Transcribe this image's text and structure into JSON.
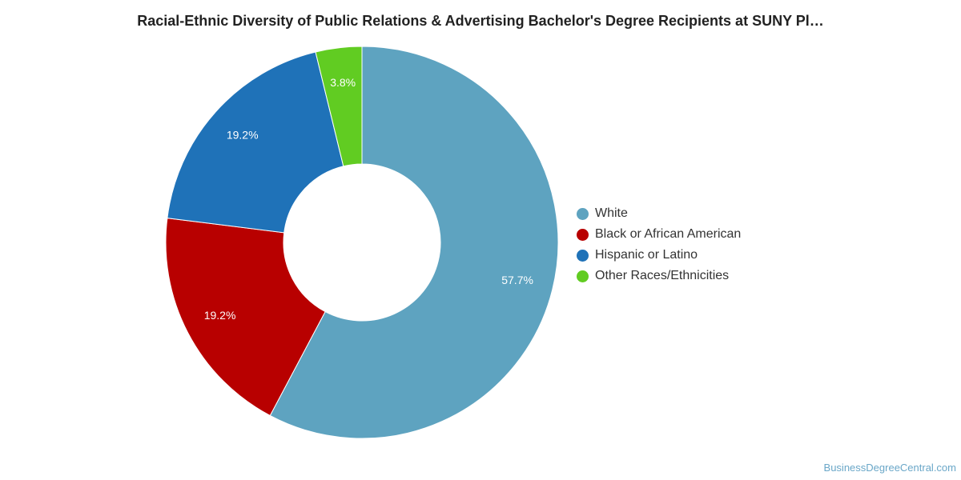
{
  "title": "Racial-Ethnic Diversity of Public Relations & Advertising Bachelor's Degree Recipients at SUNY Pl…",
  "source": "BusinessDegreeCentral.com",
  "chart_data": {
    "type": "pie",
    "donut": true,
    "title": "Racial-Ethnic Diversity of Public Relations & Advertising Bachelor's Degree Recipients at SUNY Pl…",
    "categories": [
      "White",
      "Black or African American",
      "Hispanic or Latino",
      "Other Races/Ethnicities"
    ],
    "values": [
      57.7,
      19.2,
      19.2,
      3.8
    ],
    "value_labels": [
      "57.7%",
      "19.2%",
      "19.2%",
      "3.8%"
    ],
    "colors": [
      "#5ea3c0",
      "#b80000",
      "#1f72b8",
      "#61cc22"
    ],
    "legend_position": "right"
  }
}
